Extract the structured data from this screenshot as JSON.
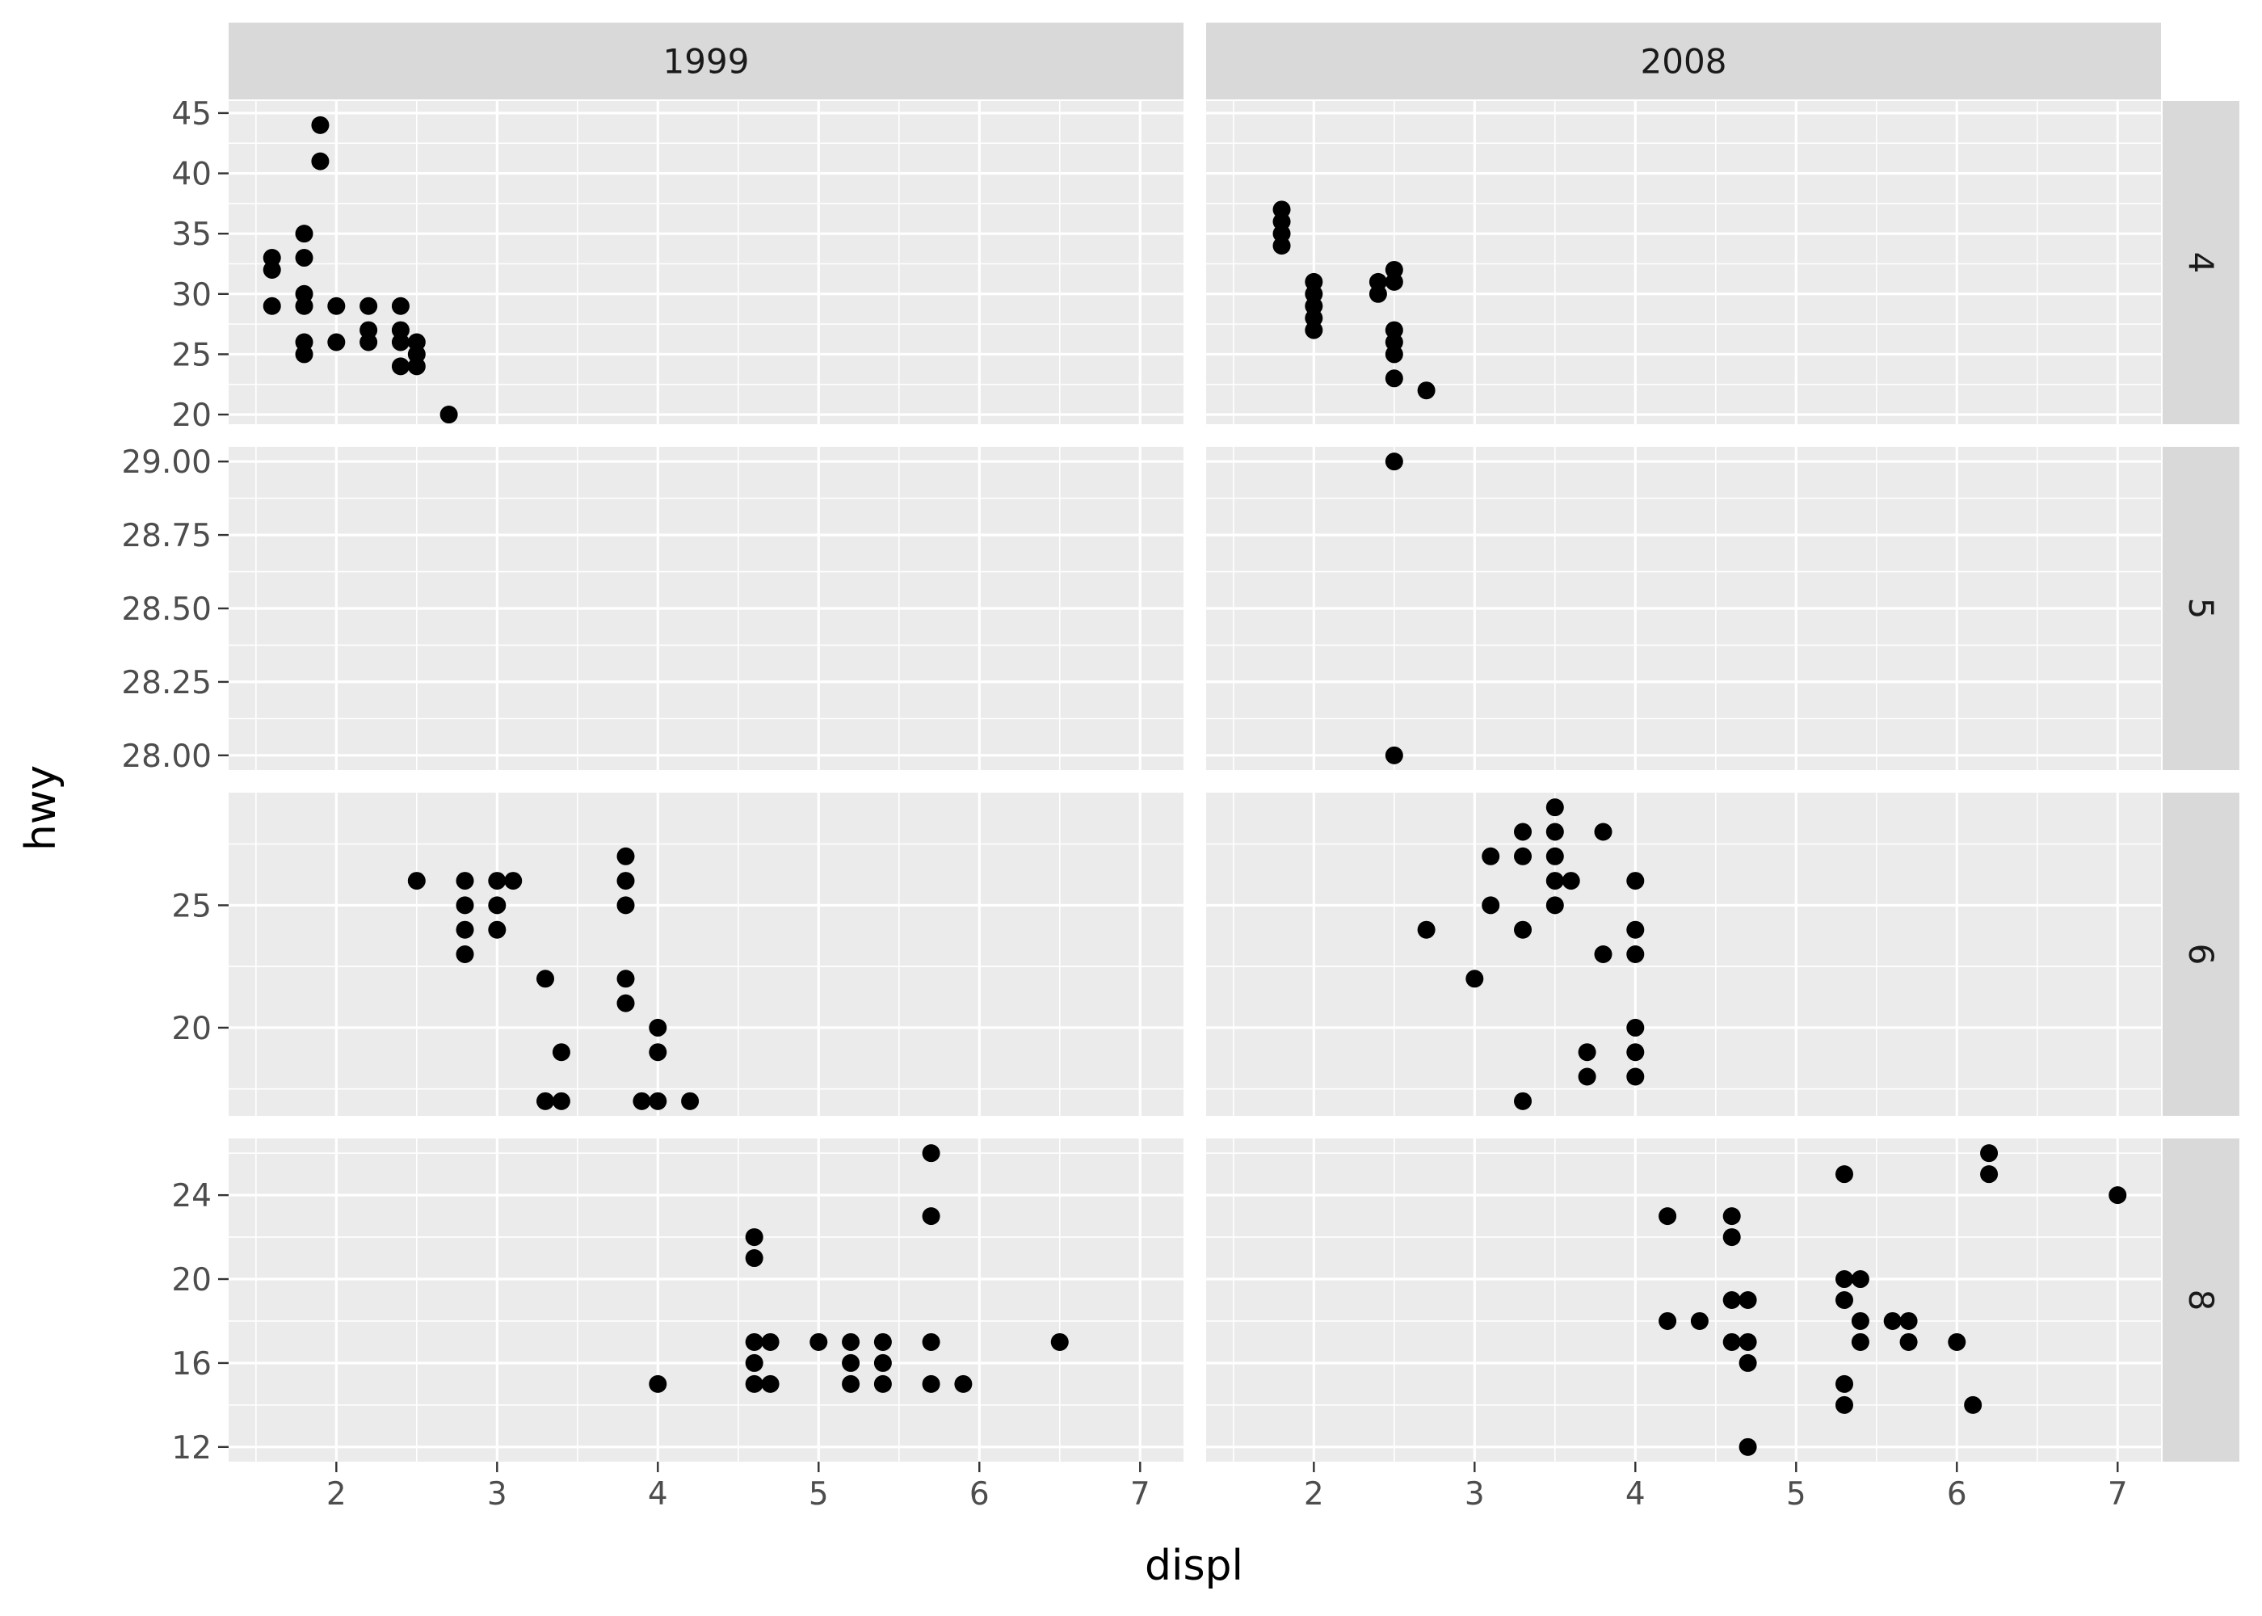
{
  "chart_data": {
    "type": "scatter",
    "xlabel": "displ",
    "ylabel": "hwy",
    "facet_cols": [
      "1999",
      "2008"
    ],
    "facet_rows": [
      "4",
      "5",
      "6",
      "8"
    ],
    "xlim": [
      1.33,
      7.27
    ],
    "x_ticks": [
      "2",
      "3",
      "4",
      "5",
      "6",
      "7"
    ],
    "rows": [
      {
        "label": "4",
        "ylim": [
          19.2,
          46.0
        ],
        "y_ticks": [
          "20",
          "25",
          "30",
          "35",
          "40",
          "45"
        ],
        "panels": [
          {
            "col": "1999",
            "points": [
              [
                1.6,
                33
              ],
              [
                1.6,
                32
              ],
              [
                1.6,
                29
              ],
              [
                1.8,
                35
              ],
              [
                1.8,
                33
              ],
              [
                1.8,
                30
              ],
              [
                1.8,
                29
              ],
              [
                1.8,
                26
              ],
              [
                1.8,
                25
              ],
              [
                1.9,
                44
              ],
              [
                1.9,
                41
              ],
              [
                2.0,
                29
              ],
              [
                2.0,
                26
              ],
              [
                2.2,
                29
              ],
              [
                2.2,
                27
              ],
              [
                2.2,
                26
              ],
              [
                2.4,
                29
              ],
              [
                2.4,
                27
              ],
              [
                2.4,
                26
              ],
              [
                2.4,
                24
              ],
              [
                2.5,
                26
              ],
              [
                2.5,
                25
              ],
              [
                2.5,
                24
              ],
              [
                2.7,
                20
              ]
            ]
          },
          {
            "col": "2008",
            "points": [
              [
                1.8,
                37
              ],
              [
                1.8,
                36
              ],
              [
                1.8,
                35
              ],
              [
                1.8,
                34
              ],
              [
                2.0,
                31
              ],
              [
                2.0,
                30
              ],
              [
                2.0,
                29
              ],
              [
                2.0,
                28
              ],
              [
                2.0,
                27
              ],
              [
                2.4,
                31
              ],
              [
                2.4,
                30
              ],
              [
                2.5,
                32
              ],
              [
                2.5,
                31
              ],
              [
                2.5,
                27
              ],
              [
                2.5,
                26
              ],
              [
                2.5,
                25
              ],
              [
                2.5,
                23
              ],
              [
                2.7,
                22
              ]
            ]
          }
        ]
      },
      {
        "label": "5",
        "ylim": [
          27.95,
          29.05
        ],
        "y_ticks": [
          "28.00",
          "28.25",
          "28.50",
          "28.75",
          "29.00"
        ],
        "panels": [
          {
            "col": "1999",
            "points": []
          },
          {
            "col": "2008",
            "points": [
              [
                2.5,
                29
              ],
              [
                2.5,
                28
              ]
            ]
          }
        ]
      },
      {
        "label": "6",
        "ylim": [
          16.4,
          29.6
        ],
        "y_ticks": [
          "20",
          "25"
        ],
        "panels": [
          {
            "col": "1999",
            "points": [
              [
                2.5,
                26
              ],
              [
                2.8,
                26
              ],
              [
                2.8,
                25
              ],
              [
                2.8,
                24
              ],
              [
                2.8,
                23
              ],
              [
                3.0,
                26
              ],
              [
                3.0,
                25
              ],
              [
                3.0,
                24
              ],
              [
                3.1,
                26
              ],
              [
                3.3,
                22
              ],
              [
                3.3,
                17
              ],
              [
                3.4,
                19
              ],
              [
                3.4,
                17
              ],
              [
                3.8,
                27
              ],
              [
                3.8,
                26
              ],
              [
                3.8,
                25
              ],
              [
                3.8,
                22
              ],
              [
                3.8,
                21
              ],
              [
                3.9,
                17
              ],
              [
                4.0,
                20
              ],
              [
                4.0,
                19
              ],
              [
                4.0,
                17
              ],
              [
                4.2,
                17
              ]
            ]
          },
          {
            "col": "2008",
            "points": [
              [
                2.7,
                24
              ],
              [
                3.0,
                22
              ],
              [
                3.1,
                27
              ],
              [
                3.1,
                25
              ],
              [
                3.3,
                28
              ],
              [
                3.3,
                27
              ],
              [
                3.3,
                24
              ],
              [
                3.3,
                17
              ],
              [
                3.5,
                29
              ],
              [
                3.5,
                28
              ],
              [
                3.5,
                27
              ],
              [
                3.5,
                26
              ],
              [
                3.5,
                25
              ],
              [
                3.6,
                26
              ],
              [
                3.7,
                19
              ],
              [
                3.7,
                18
              ],
              [
                3.8,
                28
              ],
              [
                3.8,
                23
              ],
              [
                4.0,
                26
              ],
              [
                4.0,
                24
              ],
              [
                4.0,
                23
              ],
              [
                4.0,
                20
              ],
              [
                4.0,
                19
              ],
              [
                4.0,
                18
              ]
            ]
          }
        ]
      },
      {
        "label": "8",
        "ylim": [
          11.3,
          26.7
        ],
        "y_ticks": [
          "12",
          "16",
          "20",
          "24"
        ],
        "panels": [
          {
            "col": "1999",
            "points": [
              [
                4.0,
                15
              ],
              [
                4.6,
                22
              ],
              [
                4.6,
                21
              ],
              [
                4.6,
                17
              ],
              [
                4.6,
                16
              ],
              [
                4.6,
                15
              ],
              [
                4.7,
                17
              ],
              [
                4.7,
                15
              ],
              [
                5.0,
                17
              ],
              [
                5.2,
                17
              ],
              [
                5.2,
                16
              ],
              [
                5.2,
                15
              ],
              [
                5.4,
                17
              ],
              [
                5.4,
                16
              ],
              [
                5.4,
                15
              ],
              [
                5.7,
                26
              ],
              [
                5.7,
                23
              ],
              [
                5.7,
                17
              ],
              [
                5.7,
                15
              ],
              [
                5.9,
                15
              ],
              [
                6.5,
                17
              ]
            ]
          },
          {
            "col": "2008",
            "points": [
              [
                4.2,
                23
              ],
              [
                4.2,
                18
              ],
              [
                4.4,
                18
              ],
              [
                4.6,
                23
              ],
              [
                4.6,
                22
              ],
              [
                4.6,
                19
              ],
              [
                4.6,
                17
              ],
              [
                4.7,
                19
              ],
              [
                4.7,
                17
              ],
              [
                4.7,
                16
              ],
              [
                4.7,
                12
              ],
              [
                5.3,
                25
              ],
              [
                5.3,
                20
              ],
              [
                5.3,
                19
              ],
              [
                5.3,
                15
              ],
              [
                5.3,
                14
              ],
              [
                5.4,
                20
              ],
              [
                5.4,
                18
              ],
              [
                5.4,
                17
              ],
              [
                5.6,
                18
              ],
              [
                5.7,
                18
              ],
              [
                5.7,
                17
              ],
              [
                6.0,
                17
              ],
              [
                6.1,
                14
              ],
              [
                6.2,
                26
              ],
              [
                6.2,
                25
              ],
              [
                7.0,
                24
              ]
            ]
          }
        ]
      }
    ]
  }
}
